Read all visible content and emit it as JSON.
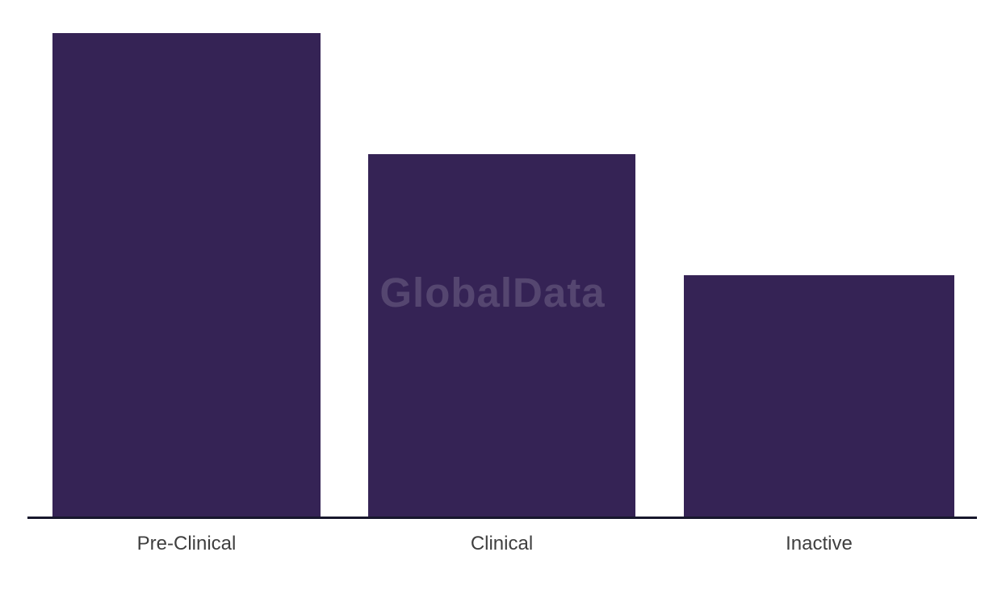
{
  "chart_data": {
    "type": "bar",
    "title": "",
    "xlabel": "",
    "ylabel": "",
    "categories": [
      "Pre-Clinical",
      "Clinical",
      "Inactive"
    ],
    "values": [
      600,
      450,
      300
    ],
    "value_note": "No numeric y-axis shown in image; values are relative bar heights estimated from pixels (ratio 4:3:2)",
    "grid": false,
    "legend": false,
    "watermark": "GlobalData",
    "colors": {
      "bar": "#352355",
      "axis_line": "#17172c",
      "tick_label": "#3f3f3f",
      "background": "#ffffff",
      "watermark": "rgba(255,255,255,0.16)"
    }
  }
}
